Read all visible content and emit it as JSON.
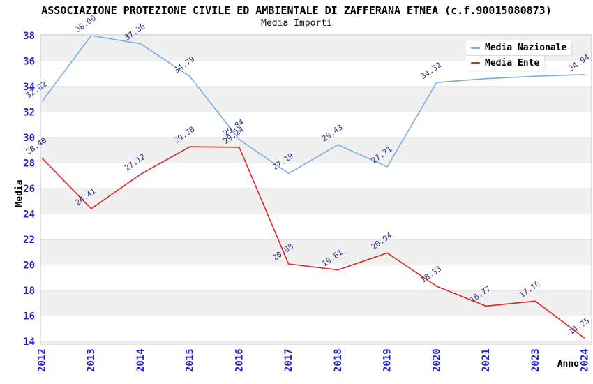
{
  "chart_data": {
    "type": "line",
    "title": "ASSOCIAZIONE PROTEZIONE CIVILE ED AMBIENTALE DI ZAFFERANA ETNEA (c.f.90015080873)",
    "subtitle": "Media Importi",
    "xlabel": "Anno",
    "ylabel": "Media",
    "categories": [
      "2012",
      "2013",
      "2014",
      "2015",
      "2016",
      "2017",
      "2018",
      "2019",
      "2020",
      "2021",
      "2023",
      "2024"
    ],
    "series": [
      {
        "name": "Media Nazionale",
        "color": "#79ade4",
        "values": [
          32.82,
          38.0,
          37.36,
          34.79,
          29.84,
          27.19,
          29.43,
          27.71,
          34.32,
          34.62,
          34.81,
          34.94
        ],
        "labels": [
          "32.82",
          "38.00",
          "37.36",
          "34.79",
          "29.84",
          "27.19",
          "29.43",
          "27.71",
          "34.32",
          "",
          "",
          "34.94"
        ]
      },
      {
        "name": "Media Ente",
        "color": "#e52222",
        "values": [
          28.4,
          24.41,
          27.12,
          29.28,
          29.24,
          20.08,
          19.61,
          20.94,
          18.33,
          16.77,
          17.16,
          14.25
        ],
        "labels": [
          "28.40",
          "24.41",
          "27.12",
          "29.28",
          "29.24",
          "20.08",
          "19.61",
          "20.94",
          "18.33",
          "16.77",
          "17.16",
          "14.25"
        ]
      }
    ],
    "ylim": [
      14,
      38
    ],
    "yticks": [
      38,
      36,
      34,
      32,
      30,
      28,
      26,
      24,
      22,
      20,
      18,
      16,
      14
    ],
    "grid": true,
    "legend_position": "top-right",
    "band_colors": [
      "#f0f0f0",
      "#ffffff"
    ],
    "tick_color": "#2222cc",
    "data_label_color": "#333388",
    "frame_color": "#c6c6c6",
    "gridline_color": "#dcdcdc"
  }
}
